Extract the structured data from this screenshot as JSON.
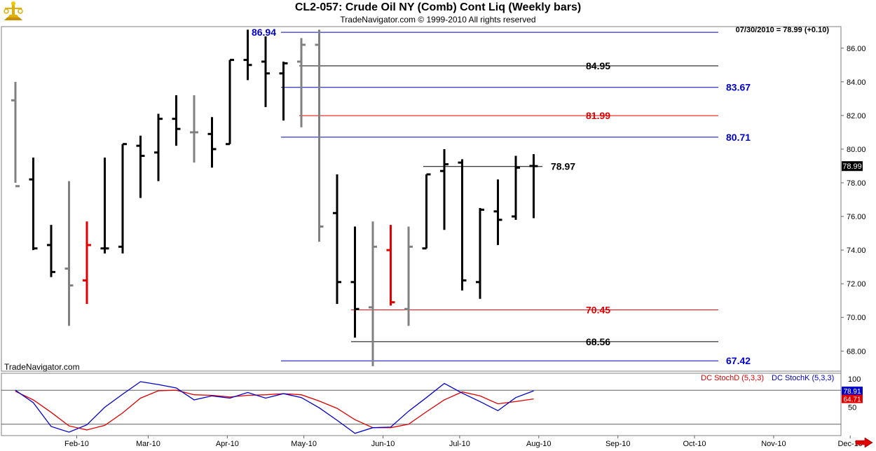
{
  "header": {
    "title": "CL2-057:  Crude Oil NY (Comb) Cont Liq  (Weekly bars)",
    "subtitle": "TradeNavigator.com © 1999-2010 All rights reserved",
    "quote": "07/30/2010 = 78.99 (+0.10)",
    "watermark": "TradeNavigator.com"
  },
  "colors": {
    "up_bar": "#000000",
    "neutral_bar": "#808080",
    "down_bar": "#e00000",
    "blue_line": "#0000cc",
    "red_line": "#e00000",
    "black_line": "#000000",
    "stoch_d": "#e00000",
    "stoch_k": "#0000cc",
    "last_price_box": "#000000"
  },
  "chart_data": [
    {
      "type": "bar",
      "subtype": "ohlc",
      "ylim": [
        67,
        87.5
      ],
      "y_ticks": [
        "68.00",
        "70.00",
        "72.00",
        "74.00",
        "76.00",
        "78.00",
        "80.00",
        "82.00",
        "84.00",
        "86.00"
      ],
      "x_ticks": [
        "Feb-10",
        "Mar-10",
        "Apr-10",
        "May-10",
        "Jun-10",
        "Jul-10",
        "Aug-10",
        "Sep-10",
        "Oct-10",
        "Nov-10",
        "Dec-10"
      ],
      "last_price_label": "78.99",
      "bars": [
        {
          "date": "2010-01-08",
          "o": 82.9,
          "h": 84.0,
          "l": 78.0,
          "c": 77.8,
          "color": "neutral"
        },
        {
          "date": "2010-01-15",
          "o": 78.2,
          "h": 79.5,
          "l": 74.0,
          "c": 74.1,
          "color": "up"
        },
        {
          "date": "2010-01-22",
          "o": 74.3,
          "h": 75.5,
          "l": 72.4,
          "c": 72.7,
          "color": "up"
        },
        {
          "date": "2010-01-29",
          "o": 72.9,
          "h": 78.1,
          "l": 69.5,
          "c": 71.9,
          "color": "neutral"
        },
        {
          "date": "2010-02-05",
          "o": 72.2,
          "h": 75.7,
          "l": 70.8,
          "c": 74.3,
          "color": "down"
        },
        {
          "date": "2010-02-12",
          "o": 74.1,
          "h": 79.5,
          "l": 73.8,
          "c": 74.1,
          "color": "up"
        },
        {
          "date": "2010-02-19",
          "o": 74.2,
          "h": 80.3,
          "l": 73.8,
          "c": 80.3,
          "color": "up"
        },
        {
          "date": "2010-02-26",
          "o": 80.2,
          "h": 80.8,
          "l": 77.1,
          "c": 79.6,
          "color": "up"
        },
        {
          "date": "2010-03-05",
          "o": 79.8,
          "h": 82.1,
          "l": 78.1,
          "c": 81.8,
          "color": "up"
        },
        {
          "date": "2010-03-12",
          "o": 81.8,
          "h": 83.2,
          "l": 80.2,
          "c": 81.2,
          "color": "up"
        },
        {
          "date": "2010-03-19",
          "o": 81.0,
          "h": 83.2,
          "l": 79.2,
          "c": 81.0,
          "color": "neutral"
        },
        {
          "date": "2010-03-26",
          "o": 80.9,
          "h": 81.9,
          "l": 78.9,
          "c": 80.0,
          "color": "up"
        },
        {
          "date": "2010-04-02",
          "o": 80.3,
          "h": 85.3,
          "l": 80.3,
          "c": 85.3,
          "color": "up"
        },
        {
          "date": "2010-04-09",
          "o": 85.3,
          "h": 87.1,
          "l": 84.1,
          "c": 85.0,
          "color": "up"
        },
        {
          "date": "2010-04-16",
          "o": 85.2,
          "h": 86.7,
          "l": 82.5,
          "c": 84.5,
          "color": "up"
        },
        {
          "date": "2010-04-23",
          "o": 84.5,
          "h": 85.2,
          "l": 81.7,
          "c": 85.1,
          "color": "up"
        },
        {
          "date": "2010-04-30",
          "o": 85.2,
          "h": 86.6,
          "l": 81.3,
          "c": 86.2,
          "color": "neutral"
        },
        {
          "date": "2010-05-07",
          "o": 86.2,
          "h": 87.1,
          "l": 74.5,
          "c": 75.4,
          "color": "neutral"
        },
        {
          "date": "2010-05-14",
          "o": 76.2,
          "h": 78.5,
          "l": 70.8,
          "c": 72.1,
          "color": "up"
        },
        {
          "date": "2010-05-21",
          "o": 72.1,
          "h": 75.4,
          "l": 68.8,
          "c": 70.5,
          "color": "up"
        },
        {
          "date": "2010-05-28",
          "o": 70.6,
          "h": 75.7,
          "l": 67.1,
          "c": 74.2,
          "color": "neutral"
        },
        {
          "date": "2010-06-04",
          "o": 74.0,
          "h": 75.5,
          "l": 70.7,
          "c": 70.9,
          "color": "down"
        },
        {
          "date": "2010-06-11",
          "o": 70.5,
          "h": 75.4,
          "l": 69.5,
          "c": 74.2,
          "color": "neutral"
        },
        {
          "date": "2010-06-18",
          "o": 74.1,
          "h": 78.5,
          "l": 74.1,
          "c": 78.5,
          "color": "up"
        },
        {
          "date": "2010-06-25",
          "o": 78.7,
          "h": 80.0,
          "l": 75.2,
          "c": 79.1,
          "color": "up"
        },
        {
          "date": "2010-07-02",
          "o": 79.2,
          "h": 79.4,
          "l": 71.6,
          "c": 72.2,
          "color": "up"
        },
        {
          "date": "2010-07-09",
          "o": 72.1,
          "h": 76.5,
          "l": 71.1,
          "c": 76.4,
          "color": "up"
        },
        {
          "date": "2010-07-16",
          "o": 76.3,
          "h": 78.2,
          "l": 74.3,
          "c": 75.8,
          "color": "up"
        },
        {
          "date": "2010-07-23",
          "o": 76.0,
          "h": 79.6,
          "l": 75.8,
          "c": 78.9,
          "color": "up"
        },
        {
          "date": "2010-07-30",
          "o": 79.0,
          "h": 79.7,
          "l": 75.9,
          "c": 78.99,
          "color": "up"
        }
      ],
      "levels": [
        {
          "label": "86.94",
          "value": 86.94,
          "color": "blue"
        },
        {
          "label": "84.95",
          "value": 84.95,
          "color": "black"
        },
        {
          "label": "83.67",
          "value": 83.67,
          "color": "blue"
        },
        {
          "label": "81.99",
          "value": 81.99,
          "color": "red"
        },
        {
          "label": "80.71",
          "value": 80.71,
          "color": "blue"
        },
        {
          "label": "78.97",
          "value": 78.97,
          "color": "black"
        },
        {
          "label": "70.45",
          "value": 70.45,
          "color": "red"
        },
        {
          "label": "68.56",
          "value": 68.56,
          "color": "black"
        },
        {
          "label": "67.42",
          "value": 67.42,
          "color": "blue"
        }
      ]
    },
    {
      "type": "line",
      "legend": [
        "DC StochD (5,3,3)",
        "DC StochK (5,3,3)"
      ],
      "ylim": [
        0,
        100
      ],
      "y_ticks": [
        "100",
        "50"
      ],
      "reference_lines": [
        80,
        20
      ],
      "last_labels": {
        "stoch_k": "78.91",
        "stoch_d": "64.71"
      },
      "series": [
        {
          "name": "DC StochD (5,3,3)",
          "color": "red",
          "values": [
            78,
            63,
            41,
            17,
            10,
            18,
            40,
            66,
            79,
            80,
            72,
            71,
            68,
            71,
            72,
            74,
            72,
            61,
            48,
            28,
            14,
            14,
            20,
            42,
            63,
            77,
            70,
            56,
            60,
            64.71
          ]
        },
        {
          "name": "DC StochK (5,3,3)",
          "color": "blue",
          "values": [
            80,
            58,
            16,
            6,
            19,
            50,
            73,
            95,
            90,
            84,
            63,
            70,
            66,
            76,
            66,
            74,
            67,
            49,
            27,
            4,
            14,
            15,
            43,
            67,
            92,
            75,
            60,
            44,
            67,
            78.91
          ]
        }
      ]
    }
  ]
}
